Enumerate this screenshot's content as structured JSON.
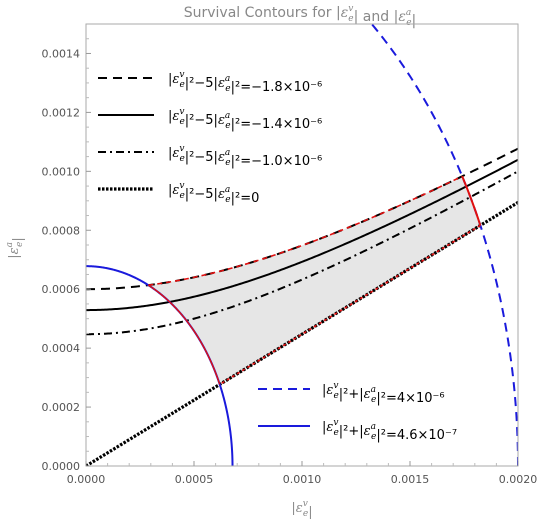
{
  "chart_data": {
    "type": "line",
    "title": "Survival Contours for |ε_e^v| and |ε_e^a|",
    "xlabel": "|ε_e^v|",
    "ylabel": "|ε_e^a|",
    "xlim": [
      0,
      0.002
    ],
    "ylim": [
      0,
      0.0015
    ],
    "grid": false,
    "x_ticks": [
      "0.0000",
      "0.0005",
      "0.0010",
      "0.0015",
      "0.0020"
    ],
    "y_ticks": [
      "0.0000",
      "0.0002",
      "0.0004",
      "0.0006",
      "0.0008",
      "0.0010",
      "0.0012",
      "0.0014"
    ],
    "x_tick_values": [
      0,
      0.0005,
      0.001,
      0.0015,
      0.002
    ],
    "y_tick_values": [
      0,
      0.0002,
      0.0004,
      0.0006,
      0.0008,
      0.001,
      0.0012,
      0.0014
    ],
    "legend_upper_left": [
      {
        "label": "|ε_e^v|²−5|ε_e^a|²=−1.8×10⁻⁶",
        "style": "dashed",
        "color": "#000000"
      },
      {
        "label": "|ε_e^v|²−5|ε_e^a|²=−1.4×10⁻⁶",
        "style": "solid",
        "color": "#000000"
      },
      {
        "label": "|ε_e^v|²−5|ε_e^a|²=−1.0×10⁻⁶",
        "style": "dashdot",
        "color": "#000000"
      },
      {
        "label": "|ε_e^v|²−5|ε_e^a|²=0",
        "style": "dotted",
        "color": "#000000"
      }
    ],
    "legend_lower_right": [
      {
        "label": "|ε_e^v|²+|ε_e^a|²=4×10⁻⁶",
        "style": "dashed",
        "color": "#1a1adc"
      },
      {
        "label": "|ε_e^v|²+|ε_e^a|²=4.6×10⁻⁷",
        "style": "solid",
        "color": "#1a1adc"
      }
    ],
    "series": [
      {
        "name": "|ε_e^v|²−5|ε_e^a|²=−1.8×10⁻⁶",
        "kind": "hyperbola",
        "c": -1.8e-06,
        "style": "dashed",
        "color": "#000000"
      },
      {
        "name": "|ε_e^v|²−5|ε_e^a|²=−1.4×10⁻⁶",
        "kind": "hyperbola",
        "c": -1.4e-06,
        "style": "solid",
        "color": "#000000"
      },
      {
        "name": "|ε_e^v|²−5|ε_e^a|²=−1.0×10⁻⁶",
        "kind": "hyperbola",
        "c": -1e-06,
        "style": "dashdot",
        "color": "#000000"
      },
      {
        "name": "|ε_e^v|²−5|ε_e^a|²=0",
        "kind": "hyperbola",
        "c": 0,
        "style": "dotted",
        "color": "#000000"
      },
      {
        "name": "|ε_e^v|²+|ε_e^a|²=4×10⁻⁶",
        "kind": "circle",
        "r2": 4e-06,
        "style": "dashed",
        "color": "#1a1adc"
      },
      {
        "name": "|ε_e^v|²+|ε_e^a|²=4.6×10⁻⁷",
        "kind": "circle",
        "r2": 4.6e-07,
        "style": "solid",
        "color": "#1a1adc"
      }
    ],
    "shaded_region": {
      "description": "region between c=−1.8×10⁻⁶ and c=0 contours, outside small circle, inside large circle",
      "fill": "#e6e6e6",
      "boundary_color": "#e01010"
    }
  }
}
